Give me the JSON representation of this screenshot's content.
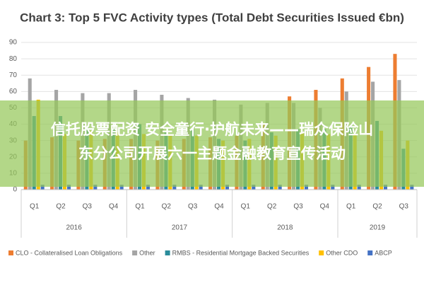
{
  "chart_data": {
    "type": "bar",
    "title": "Chart 3: Top 5 FVC Activity types (Total Debt Securities Issued €bn)",
    "categories": [
      "Q1",
      "Q2",
      "Q3",
      "Q4",
      "Q1",
      "Q2",
      "Q3",
      "Q4",
      "Q1",
      "Q2",
      "Q3",
      "Q4",
      "Q1",
      "Q2",
      "Q3"
    ],
    "groups": [
      "2016",
      "2017",
      "2018",
      "2019"
    ],
    "series": [
      {
        "name": "CLO - Collateralised Loan Obligations",
        "color": "#ed7d31",
        "values": [
          30,
          32,
          30,
          31,
          31,
          30,
          31,
          32,
          33,
          40,
          57,
          61,
          68,
          75,
          83
        ]
      },
      {
        "name": "Other",
        "color": "#a5a5a5",
        "values": [
          68,
          61,
          59,
          59,
          61,
          58,
          56,
          55,
          52,
          53,
          53,
          50,
          60,
          66,
          67
        ]
      },
      {
        "name": "RMBS - Residential Mortgage Backed Securities",
        "color": "#2a8c9b",
        "values": [
          45,
          45,
          38,
          37,
          40,
          35,
          37,
          31,
          30,
          35,
          37,
          37,
          39,
          42,
          25
        ]
      },
      {
        "name": "Other CDO",
        "color": "#ffc000",
        "values": [
          55,
          34,
          36,
          35,
          34,
          33,
          33,
          30,
          31,
          33,
          35,
          34,
          34,
          36,
          30
        ]
      },
      {
        "name": "ABCP",
        "color": "#4472c4",
        "values": [
          3,
          3,
          3,
          3,
          3,
          3,
          3,
          3,
          3,
          3,
          3,
          3,
          3,
          3,
          3
        ]
      }
    ],
    "ylim": [
      0,
      90
    ],
    "yticks": [
      0,
      10,
      20,
      30,
      40,
      50,
      60,
      70,
      80,
      90
    ],
    "grid": true
  },
  "banner": {
    "lines": [
      "信托股票配资 安全童行·护航未来——瑞众保险山",
      "东分公司开展六一主题金融教育宣传活动"
    ]
  }
}
